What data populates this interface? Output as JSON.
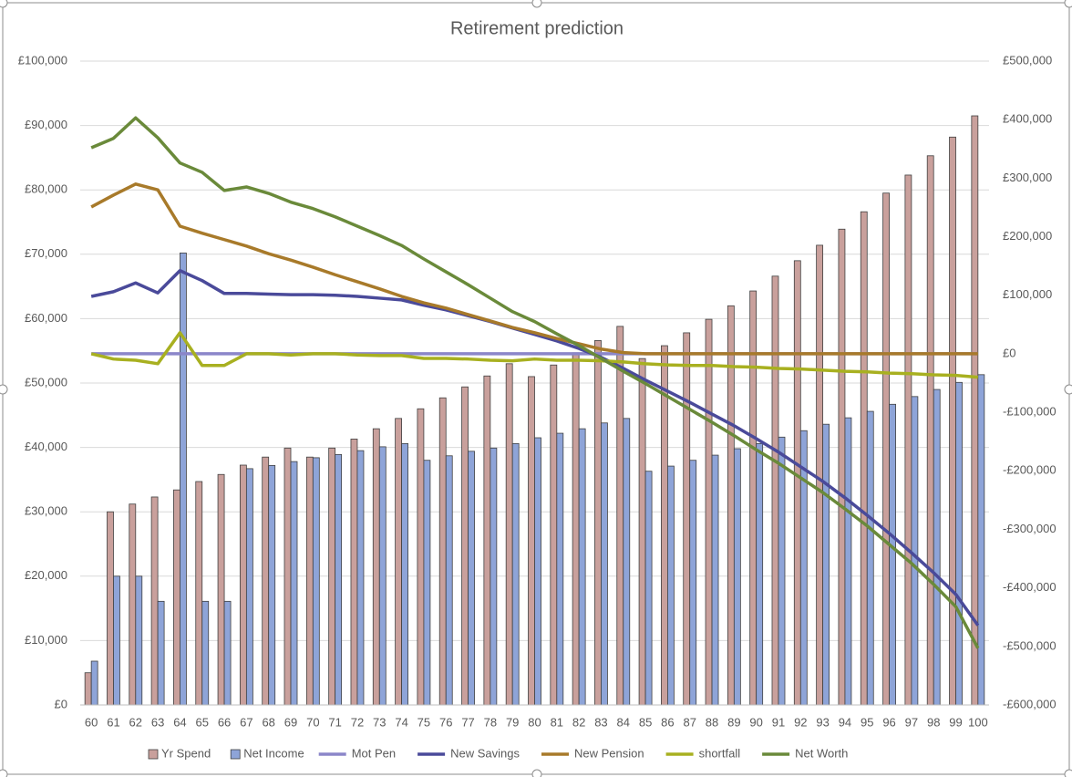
{
  "chart_data": {
    "type": "bar",
    "title": "Retirement prediction",
    "categories": [
      "60",
      "61",
      "62",
      "63",
      "64",
      "65",
      "66",
      "67",
      "68",
      "69",
      "70",
      "71",
      "72",
      "73",
      "74",
      "75",
      "76",
      "77",
      "78",
      "79",
      "80",
      "81",
      "82",
      "83",
      "84",
      "85",
      "86",
      "87",
      "88",
      "89",
      "90",
      "91",
      "92",
      "93",
      "94",
      "95",
      "96",
      "97",
      "98",
      "99",
      "100"
    ],
    "series": [
      {
        "name": "Yr Spend",
        "type": "bar",
        "color": "#c9a09c",
        "values": [
          5000,
          30000,
          31200,
          32300,
          33400,
          34700,
          35800,
          37250,
          38500,
          39900,
          38500,
          39900,
          41300,
          42900,
          44500,
          46000,
          47700,
          49400,
          51100,
          53000,
          51000,
          52800,
          54700,
          56600,
          58800,
          53800,
          55800,
          57800,
          59900,
          62000,
          64300,
          66600,
          69000,
          71400,
          73900,
          76600,
          79500,
          82300,
          85300,
          88200,
          91500
        ]
      },
      {
        "name": "Net Income",
        "type": "bar",
        "color": "#8ea4d8",
        "values": [
          6800,
          20000,
          20000,
          16100,
          70200,
          16100,
          16100,
          36700,
          37200,
          37800,
          38400,
          38900,
          39500,
          40100,
          40600,
          38000,
          38700,
          39400,
          39900,
          40600,
          41500,
          42200,
          42900,
          43800,
          44500,
          36300,
          37100,
          38000,
          38800,
          39800,
          40600,
          41600,
          42600,
          43600,
          44600,
          45600,
          46700,
          47900,
          49000,
          50100,
          51300
        ]
      },
      {
        "name": "Mot Pen",
        "type": "line",
        "axis": "y2",
        "color": "#8b86c9",
        "values": [
          0,
          0,
          0,
          0,
          0,
          0,
          0,
          0,
          0,
          0,
          0,
          0,
          0,
          0,
          0,
          0,
          0,
          0,
          0,
          0,
          0,
          0,
          0,
          0,
          0,
          0,
          0,
          0,
          0,
          0,
          0,
          0,
          0,
          0,
          0,
          0,
          0,
          0,
          0,
          0,
          0
        ]
      },
      {
        "name": "New Savings",
        "type": "line",
        "axis": "y2",
        "color": "#4a4a9a",
        "values": [
          98000,
          106000,
          121000,
          104000,
          142000,
          125000,
          103000,
          103000,
          102000,
          101000,
          101000,
          100000,
          98000,
          95000,
          92000,
          83000,
          75000,
          65000,
          55000,
          44000,
          33000,
          22000,
          9000,
          -6000,
          -25000,
          -45000,
          -64000,
          -83000,
          -103000,
          -123000,
          -145000,
          -168000,
          -193000,
          -218000,
          -246000,
          -276000,
          -307000,
          -340000,
          -374000,
          -411000,
          -464000
        ]
      },
      {
        "name": "New Pension",
        "type": "line",
        "axis": "y2",
        "color": "#a87a2a",
        "values": [
          250800,
          271000,
          290000,
          280000,
          218000,
          206000,
          195000,
          184000,
          171000,
          160000,
          148000,
          135000,
          123000,
          111000,
          98000,
          87000,
          78000,
          67000,
          56000,
          45000,
          36000,
          26000,
          17000,
          8000,
          2000,
          0,
          0,
          0,
          0,
          0,
          0,
          0,
          0,
          0,
          0,
          0,
          0,
          0,
          0,
          0,
          0
        ]
      },
      {
        "name": "shortfall",
        "type": "line",
        "axis": "y2",
        "color": "#a8b020",
        "values": [
          0,
          -9000,
          -11000,
          -17000,
          36000,
          -20000,
          -20000,
          0,
          0,
          -2000,
          0,
          0,
          -2000,
          -3000,
          -3000,
          -8000,
          -8000,
          -9000,
          -11000,
          -12000,
          -9000,
          -11000,
          -11000,
          -12000,
          -14000,
          -17000,
          -19000,
          -20000,
          -20000,
          -22000,
          -23000,
          -25000,
          -26000,
          -28000,
          -30000,
          -31000,
          -33000,
          -34000,
          -36000,
          -37000,
          -40000
        ]
      },
      {
        "name": "Net Worth",
        "type": "line",
        "axis": "y2",
        "color": "#6a8a3a",
        "values": [
          352000,
          368000,
          403000,
          369000,
          326000,
          310000,
          279000,
          285000,
          274000,
          259000,
          248000,
          234000,
          218000,
          202000,
          185000,
          162000,
          140000,
          118000,
          95000,
          72000,
          55000,
          34000,
          14000,
          -8000,
          -30000,
          -51000,
          -73000,
          -95000,
          -117000,
          -140000,
          -164000,
          -187000,
          -212000,
          -237000,
          -265000,
          -294000,
          -326000,
          -358000,
          -394000,
          -432000,
          -503000
        ]
      }
    ],
    "ylim": [
      0,
      100000
    ],
    "yticks": [
      {
        "value": 0,
        "label": "£0"
      },
      {
        "value": 10000,
        "label": "£10,000"
      },
      {
        "value": 20000,
        "label": "£20,000"
      },
      {
        "value": 30000,
        "label": "£30,000"
      },
      {
        "value": 40000,
        "label": "£40,000"
      },
      {
        "value": 50000,
        "label": "£50,000"
      },
      {
        "value": 60000,
        "label": "£60,000"
      },
      {
        "value": 70000,
        "label": "£70,000"
      },
      {
        "value": 80000,
        "label": "£80,000"
      },
      {
        "value": 90000,
        "label": "£90,000"
      },
      {
        "value": 100000,
        "label": "£100,000"
      }
    ],
    "y2lim": [
      -600000,
      500000
    ],
    "y2ticks": [
      {
        "value": -600000,
        "label": "-£600,000"
      },
      {
        "value": -500000,
        "label": "-£500,000"
      },
      {
        "value": -400000,
        "label": "-£400,000"
      },
      {
        "value": -300000,
        "label": "-£300,000"
      },
      {
        "value": -200000,
        "label": "-£200,000"
      },
      {
        "value": -100000,
        "label": "-£100,000"
      },
      {
        "value": 0,
        "label": "£0"
      },
      {
        "value": 100000,
        "label": "£100,000"
      },
      {
        "value": 200000,
        "label": "£200,000"
      },
      {
        "value": 300000,
        "label": "£300,000"
      },
      {
        "value": 400000,
        "label": "£400,000"
      },
      {
        "value": 500000,
        "label": "£500,000"
      }
    ],
    "grid": true,
    "legend": "bottom"
  }
}
